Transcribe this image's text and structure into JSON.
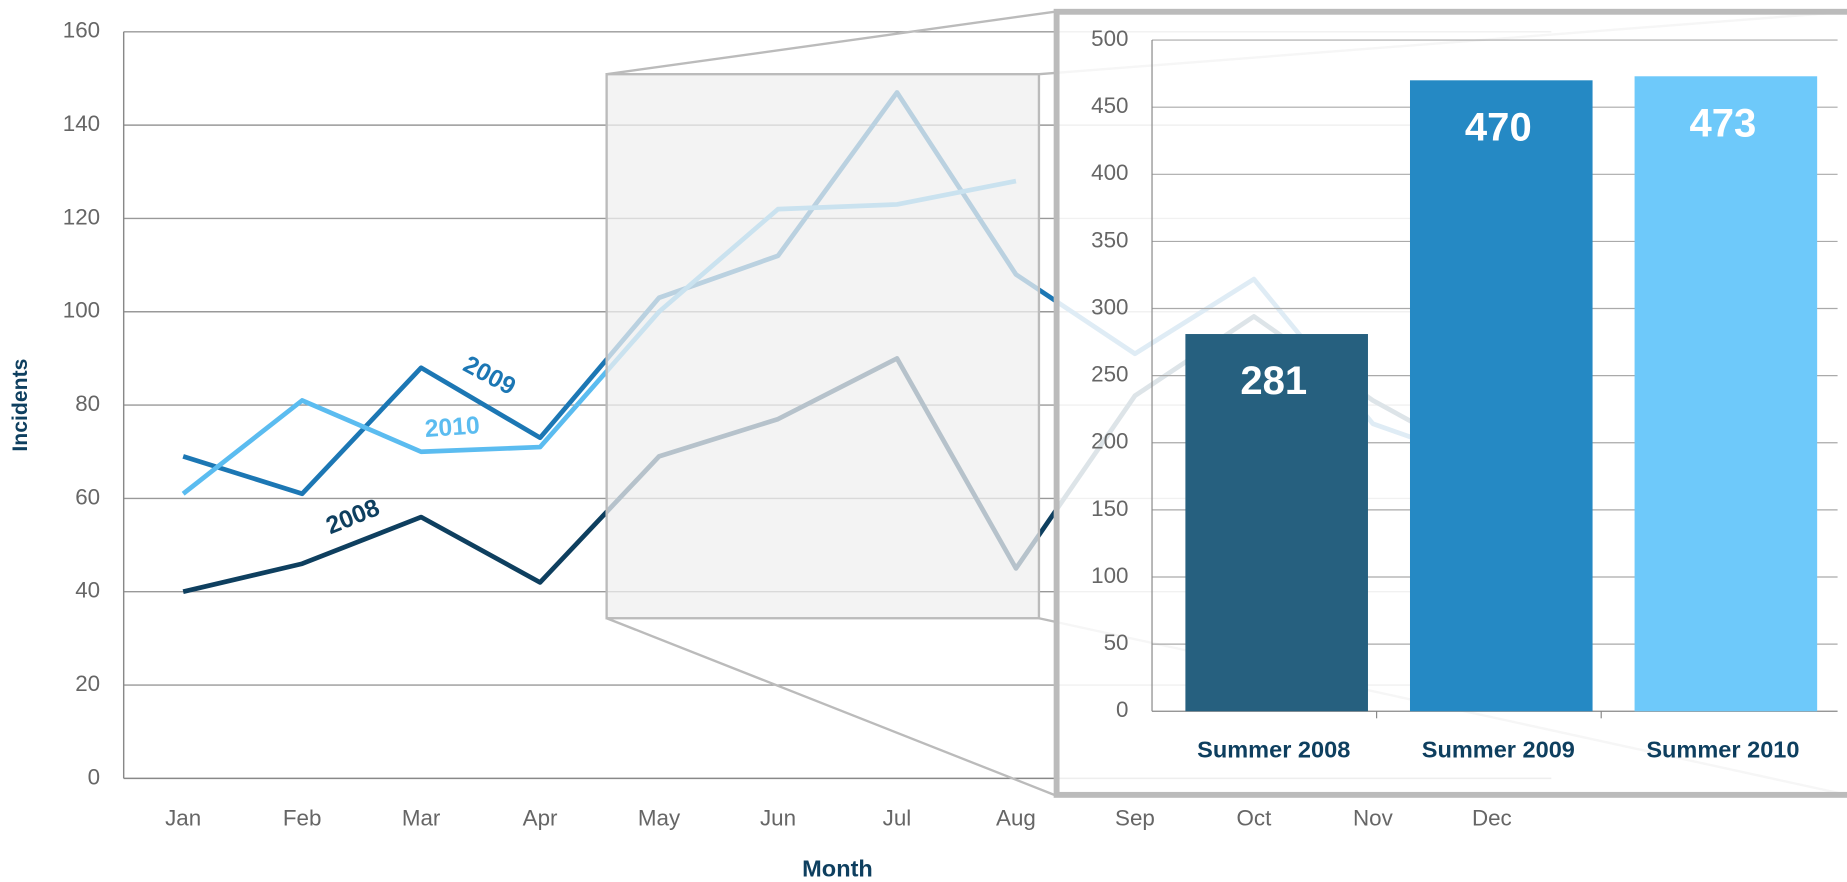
{
  "chart_data": [
    {
      "type": "line",
      "x_label": "Month",
      "y_label": "Incidents",
      "categories": [
        "Jan",
        "Feb",
        "Mar",
        "Apr",
        "May",
        "Jun",
        "Jul",
        "Aug",
        "Sep",
        "Oct",
        "Nov",
        "Dec"
      ],
      "series": [
        {
          "name": "2008",
          "color": "#0e3f5f",
          "values": [
            40,
            46,
            56,
            42,
            69,
            77,
            90,
            45,
            82,
            99,
            81,
            67
          ]
        },
        {
          "name": "2009",
          "color": "#1c77b4",
          "values": [
            69,
            61,
            88,
            73,
            103,
            112,
            147,
            108,
            91,
            107,
            76,
            67
          ]
        },
        {
          "name": "2010",
          "color": "#5bbcf0",
          "values": [
            61,
            81,
            70,
            71,
            100,
            122,
            123,
            128,
            null,
            null,
            null,
            null
          ]
        }
      ],
      "ylim": [
        0,
        160
      ],
      "yticks": [
        0,
        20,
        40,
        60,
        80,
        100,
        120,
        140,
        160
      ],
      "grid": true
    },
    {
      "type": "bar",
      "categories": [
        "Summer 2008",
        "Summer 2009",
        "Summer 2010"
      ],
      "values": [
        281,
        470,
        473
      ],
      "colors": [
        "#26607f",
        "#2589c4",
        "#6ec9fa"
      ],
      "ylim": [
        0,
        500
      ],
      "yticks": [
        0,
        50,
        100,
        150,
        200,
        250,
        300,
        350,
        400,
        450,
        500
      ],
      "grid": true
    }
  ]
}
